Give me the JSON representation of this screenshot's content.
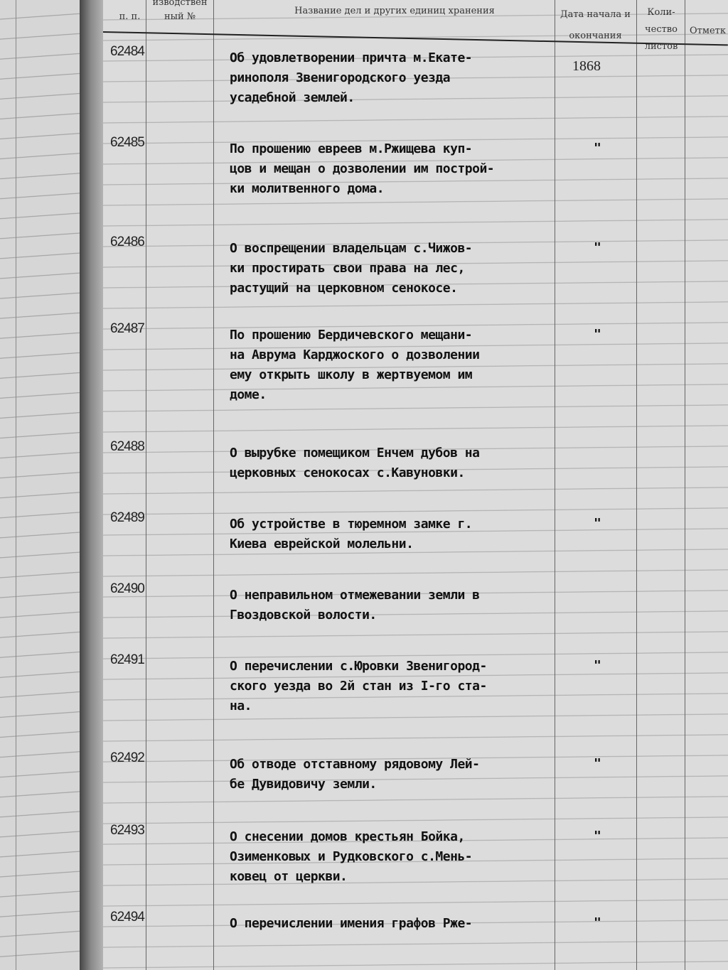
{
  "header": {
    "col_1": "п. п.",
    "col_2": "изводствен ный №",
    "col_3": "Название дел и других единиц хранения",
    "col_4": "Дата начала и окончания",
    "col_5": "Коли- чество листов",
    "col_6": "Отметк"
  },
  "entries": [
    {
      "number": "62484",
      "title": "Об удовлетворении причта м.Екате-\nринополя Звенигородского уезда\nусадебной землей.",
      "date": "1868"
    },
    {
      "number": "62485",
      "title": "По прошению евреев м.Ржищева куп-\nцов и мещан о дозволении им построй-\nки молитвенного дома.",
      "date": "\""
    },
    {
      "number": "62486",
      "title": "О воспрещении владельцам с.Чижов-\nки простирать свои права на лес,\nрастущий на церковном сенокосе.",
      "date": "\""
    },
    {
      "number": "62487",
      "title": "По прошению Бердичевского мещани-\nна Аврума Карджоского о дозволении\nему открыть школу в жертвуемом им\nдоме.",
      "date": "\""
    },
    {
      "number": "62488",
      "title": "О вырубке помещиком Енчем дубов на\nцерковных сенокосах с.Кавуновки.",
      "date": ""
    },
    {
      "number": "62489",
      "title": "Об устройстве в тюремном замке г.\nКиева еврейской молельни.",
      "date": "\""
    },
    {
      "number": "62490",
      "title": "О неправильном отмежевании земли в\nГвоздовской волости.",
      "date": ""
    },
    {
      "number": "62491",
      "title": "О перечислении с.Юровки Звенигород-\nского уезда во 2й стан из I-го ста-\nна.",
      "date": "\""
    },
    {
      "number": "62492",
      "title": "Об отводе отставному рядовому Лей-\nбе Дувидовичу земли.",
      "date": "\""
    },
    {
      "number": "62493",
      "title": "О снесении домов крестьян Бойка,\nОзименковых и Рудковского с.Мень-\nковец от церкви.",
      "date": "\""
    },
    {
      "number": "62494",
      "title": "О перечислении имения графов Ржe-",
      "date": "\""
    }
  ]
}
